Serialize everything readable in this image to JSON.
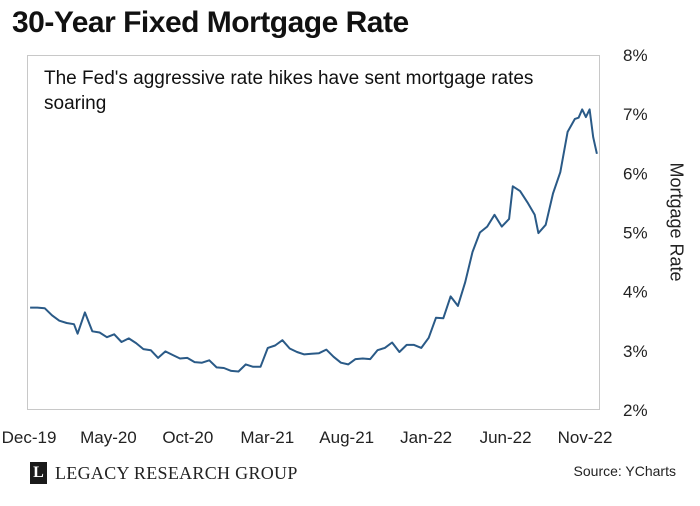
{
  "chart_data": {
    "type": "line",
    "title": "30-Year Fixed Mortgage Rate",
    "annotation": "The Fed's aggressive rate hikes have sent mortgage rates soaring",
    "ylabel": "Mortgage Rate",
    "xlabel": "",
    "x_ticks": [
      "Dec-19",
      "May-20",
      "Oct-20",
      "Mar-21",
      "Aug-21",
      "Jan-22",
      "Jun-22",
      "Nov-22"
    ],
    "y_ticks": [
      "2%",
      "3%",
      "4%",
      "5%",
      "6%",
      "7%",
      "8%"
    ],
    "ylim": [
      2,
      8
    ],
    "y_axis_side": "right",
    "grid": false,
    "series": [
      {
        "color": "#2a5a87",
        "x": [
          "2019-12-05",
          "2019-12-19",
          "2020-01-02",
          "2020-01-16",
          "2020-01-30",
          "2020-02-13",
          "2020-02-27",
          "2020-03-05",
          "2020-03-19",
          "2020-04-02",
          "2020-04-16",
          "2020-04-30",
          "2020-05-14",
          "2020-05-28",
          "2020-06-11",
          "2020-06-25",
          "2020-07-09",
          "2020-07-23",
          "2020-08-06",
          "2020-08-20",
          "2020-09-03",
          "2020-09-17",
          "2020-10-01",
          "2020-10-15",
          "2020-10-29",
          "2020-11-12",
          "2020-11-26",
          "2020-12-10",
          "2020-12-24",
          "2021-01-07",
          "2021-01-21",
          "2021-02-04",
          "2021-02-18",
          "2021-03-04",
          "2021-03-18",
          "2021-04-01",
          "2021-04-15",
          "2021-04-29",
          "2021-05-13",
          "2021-05-27",
          "2021-06-10",
          "2021-06-24",
          "2021-07-08",
          "2021-07-22",
          "2021-08-05",
          "2021-08-19",
          "2021-09-02",
          "2021-09-16",
          "2021-09-30",
          "2021-10-14",
          "2021-10-28",
          "2021-11-11",
          "2021-11-25",
          "2021-12-09",
          "2021-12-23",
          "2022-01-06",
          "2022-01-20",
          "2022-02-03",
          "2022-02-17",
          "2022-03-03",
          "2022-03-17",
          "2022-03-31",
          "2022-04-14",
          "2022-04-28",
          "2022-05-12",
          "2022-05-26",
          "2022-06-09",
          "2022-06-16",
          "2022-06-30",
          "2022-07-14",
          "2022-07-28",
          "2022-08-04",
          "2022-08-18",
          "2022-09-01",
          "2022-09-15",
          "2022-09-29",
          "2022-10-13",
          "2022-10-20",
          "2022-10-27",
          "2022-11-03",
          "2022-11-10",
          "2022-11-17",
          "2022-11-24"
        ],
        "values": [
          3.73,
          3.73,
          3.72,
          3.6,
          3.51,
          3.47,
          3.45,
          3.29,
          3.65,
          3.33,
          3.31,
          3.23,
          3.28,
          3.15,
          3.21,
          3.13,
          3.03,
          3.01,
          2.88,
          2.99,
          2.93,
          2.87,
          2.88,
          2.81,
          2.8,
          2.84,
          2.72,
          2.71,
          2.66,
          2.65,
          2.77,
          2.73,
          2.73,
          3.05,
          3.09,
          3.18,
          3.04,
          2.98,
          2.94,
          2.95,
          2.96,
          3.02,
          2.9,
          2.8,
          2.77,
          2.86,
          2.87,
          2.86,
          3.01,
          3.05,
          3.14,
          2.98,
          3.1,
          3.1,
          3.05,
          3.22,
          3.56,
          3.55,
          3.92,
          3.76,
          4.16,
          4.67,
          5.0,
          5.1,
          5.3,
          5.1,
          5.23,
          5.78,
          5.7,
          5.51,
          5.3,
          4.99,
          5.13,
          5.66,
          6.02,
          6.7,
          6.92,
          6.94,
          7.08,
          6.95,
          7.08,
          6.61,
          6.33
        ]
      }
    ]
  },
  "footer": {
    "logo_mark": "L",
    "logo_text": "LEGACY RESEARCH GROUP",
    "source": "Source: YCharts"
  }
}
